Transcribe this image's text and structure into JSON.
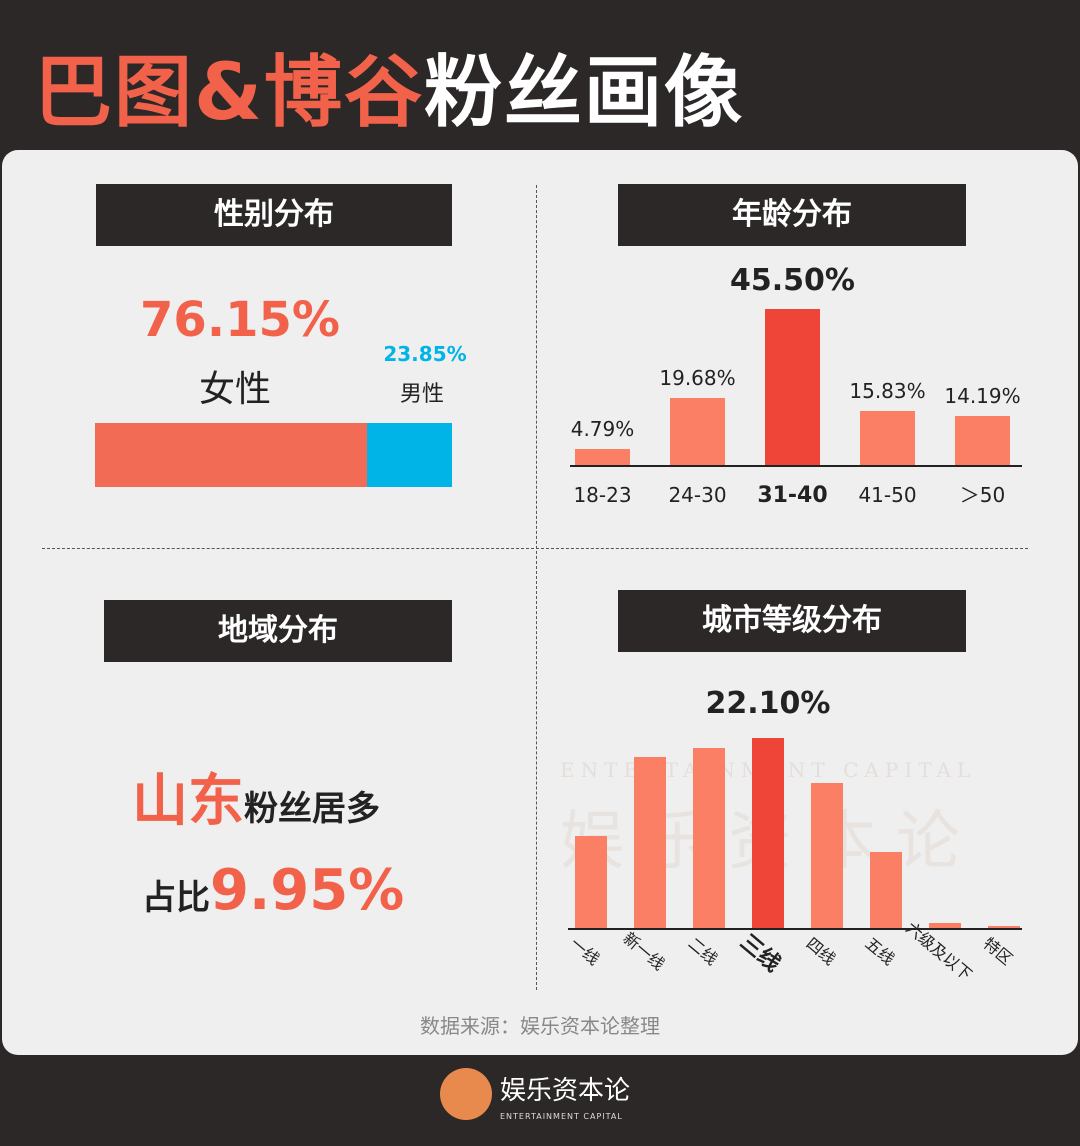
{
  "title": {
    "part1": "巴图&博谷",
    "part2": "粉丝画像"
  },
  "colors": {
    "accent": "#f2624a",
    "male": "#00b4e8",
    "bar": "#fb7f65",
    "bar_highlight": "#ef4438",
    "dark": "#2b2827"
  },
  "gender": {
    "header": "性别分布",
    "female_pct": "76.15%",
    "female_label": "女性",
    "male_pct": "23.85%",
    "male_label": "男性"
  },
  "age": {
    "header": "年龄分布"
  },
  "region": {
    "header": "地域分布",
    "province": "山东",
    "suffix": "粉丝居多",
    "share_label": "占比",
    "share_value": "9.95%"
  },
  "city": {
    "header": "城市等级分布"
  },
  "source": "数据来源：娱乐资本论整理",
  "watermark": {
    "cn": "娱乐资本论",
    "en": "ENTERTAINMENT CAPITAL"
  },
  "footer": {
    "brand": "娱乐资本论",
    "brand_en": "ENTERTAINMENT CAPITAL"
  },
  "chart_data": [
    {
      "type": "bar",
      "title": "性别分布",
      "categories": [
        "女性",
        "男性"
      ],
      "values": [
        76.15,
        23.85
      ],
      "stacked": true
    },
    {
      "type": "bar",
      "title": "年龄分布",
      "categories": [
        "18-23",
        "24-30",
        "31-40",
        "41-50",
        "＞50"
      ],
      "values": [
        4.79,
        19.68,
        45.5,
        15.83,
        14.19
      ],
      "labels": [
        "4.79%",
        "19.68%",
        "45.50%",
        "15.83%",
        "14.19%"
      ],
      "highlight": "31-40"
    },
    {
      "type": "bar",
      "title": "城市等级分布",
      "categories": [
        "一线",
        "新一线",
        "二线",
        "三线",
        "四线",
        "五线",
        "六级及以下",
        "特区"
      ],
      "values": [
        10.7,
        19.9,
        20.9,
        22.1,
        16.9,
        8.8,
        0.6,
        0.2
      ],
      "labels": [
        "",
        "",
        "",
        "22.10%",
        "",
        "",
        "",
        ""
      ],
      "highlight": "三线"
    }
  ]
}
